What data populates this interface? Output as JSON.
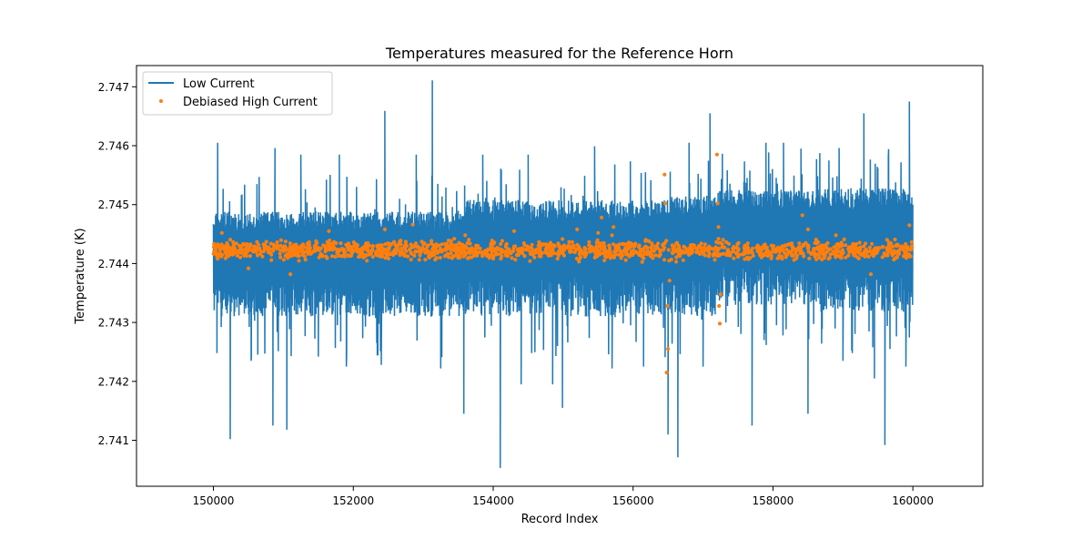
{
  "chart_data": {
    "type": "line",
    "title": "Temperatures measured for the Reference Horn",
    "xlabel": "Record Index",
    "ylabel": "Temperature (K)",
    "xlim": [
      148900,
      161000
    ],
    "ylim": [
      2.74022,
      2.74736
    ],
    "xticks": [
      150000,
      152000,
      154000,
      156000,
      158000,
      160000
    ],
    "xtick_labels": [
      "150000",
      "152000",
      "154000",
      "156000",
      "158000",
      "160000"
    ],
    "yticks": [
      2.741,
      2.742,
      2.743,
      2.744,
      2.745,
      2.746,
      2.747
    ],
    "ytick_labels": [
      "2.741",
      "2.742",
      "2.743",
      "2.744",
      "2.745",
      "2.746",
      "2.747"
    ],
    "legend_position": "upper-left",
    "series": [
      {
        "name": "Low Current",
        "kind": "line",
        "color": "#1f77b4",
        "x_range": [
          150000,
          160000
        ],
        "band_segments": [
          {
            "x": [
              150000,
              153600
            ],
            "low": 2.7431,
            "high": 2.74488
          },
          {
            "x": [
              153600,
              156500
            ],
            "low": 2.7431,
            "high": 2.74508
          },
          {
            "x": [
              156500,
              157200
            ],
            "low": 2.7431,
            "high": 2.74515
          },
          {
            "x": [
              157200,
              158600
            ],
            "low": 2.7433,
            "high": 2.74525
          },
          {
            "x": [
              158600,
              160000
            ],
            "low": 2.74318,
            "high": 2.74528
          }
        ],
        "spikes": [
          {
            "x": 150060,
            "y": 2.74605
          },
          {
            "x": 150050,
            "y": 2.74248
          },
          {
            "x": 150240,
            "y": 2.74102
          },
          {
            "x": 150540,
            "y": 2.74235
          },
          {
            "x": 150880,
            "y": 2.74596
          },
          {
            "x": 150850,
            "y": 2.74125
          },
          {
            "x": 151050,
            "y": 2.74118
          },
          {
            "x": 151250,
            "y": 2.74585
          },
          {
            "x": 151500,
            "y": 2.74242
          },
          {
            "x": 151800,
            "y": 2.74585
          },
          {
            "x": 151900,
            "y": 2.74225
          },
          {
            "x": 152450,
            "y": 2.74659
          },
          {
            "x": 152400,
            "y": 2.74228
          },
          {
            "x": 152900,
            "y": 2.74585
          },
          {
            "x": 153130,
            "y": 2.74711
          },
          {
            "x": 153250,
            "y": 2.74222
          },
          {
            "x": 153580,
            "y": 2.74145
          },
          {
            "x": 153850,
            "y": 2.74585
          },
          {
            "x": 154100,
            "y": 2.74053
          },
          {
            "x": 154400,
            "y": 2.74195
          },
          {
            "x": 154500,
            "y": 2.74585
          },
          {
            "x": 154850,
            "y": 2.74195
          },
          {
            "x": 154990,
            "y": 2.74155
          },
          {
            "x": 155450,
            "y": 2.74599
          },
          {
            "x": 155700,
            "y": 2.74222
          },
          {
            "x": 156150,
            "y": 2.74225
          },
          {
            "x": 156500,
            "y": 2.7411
          },
          {
            "x": 156640,
            "y": 2.74071
          },
          {
            "x": 156800,
            "y": 2.74605
          },
          {
            "x": 157000,
            "y": 2.74225
          },
          {
            "x": 157100,
            "y": 2.74655
          },
          {
            "x": 157350,
            "y": 2.74525
          },
          {
            "x": 157700,
            "y": 2.74125
          },
          {
            "x": 157900,
            "y": 2.74605
          },
          {
            "x": 158150,
            "y": 2.74605
          },
          {
            "x": 158400,
            "y": 2.74595
          },
          {
            "x": 158500,
            "y": 2.74145
          },
          {
            "x": 158800,
            "y": 2.74575
          },
          {
            "x": 159000,
            "y": 2.74235
          },
          {
            "x": 159300,
            "y": 2.74655
          },
          {
            "x": 159450,
            "y": 2.74205
          },
          {
            "x": 159600,
            "y": 2.74092
          },
          {
            "x": 159650,
            "y": 2.74581
          },
          {
            "x": 159950,
            "y": 2.74675
          },
          {
            "x": 159900,
            "y": 2.74225
          }
        ]
      },
      {
        "name": "Debiased High Current",
        "kind": "scatter",
        "color": "#ff7f0e",
        "x_range": [
          150000,
          160000
        ],
        "band": {
          "center": 2.74422,
          "low": 2.744,
          "high": 2.74445
        },
        "outliers": [
          {
            "x": 150120,
            "y": 2.74452
          },
          {
            "x": 150500,
            "y": 2.74392
          },
          {
            "x": 151100,
            "y": 2.74382
          },
          {
            "x": 151650,
            "y": 2.74455
          },
          {
            "x": 152450,
            "y": 2.74458
          },
          {
            "x": 152850,
            "y": 2.74466
          },
          {
            "x": 153600,
            "y": 2.74448
          },
          {
            "x": 154300,
            "y": 2.74455
          },
          {
            "x": 155200,
            "y": 2.74458
          },
          {
            "x": 155500,
            "y": 2.74452
          },
          {
            "x": 155550,
            "y": 2.74478
          },
          {
            "x": 155700,
            "y": 2.74448
          },
          {
            "x": 155720,
            "y": 2.74462
          },
          {
            "x": 156450,
            "y": 2.74551
          },
          {
            "x": 156500,
            "y": 2.74255
          },
          {
            "x": 156480,
            "y": 2.74215
          },
          {
            "x": 156490,
            "y": 2.74328
          },
          {
            "x": 156460,
            "y": 2.74502
          },
          {
            "x": 156520,
            "y": 2.74371
          },
          {
            "x": 157200,
            "y": 2.74585
          },
          {
            "x": 157210,
            "y": 2.74502
          },
          {
            "x": 157220,
            "y": 2.74462
          },
          {
            "x": 157230,
            "y": 2.74328
          },
          {
            "x": 157240,
            "y": 2.74298
          },
          {
            "x": 157250,
            "y": 2.74348
          },
          {
            "x": 158420,
            "y": 2.74482
          },
          {
            "x": 158500,
            "y": 2.74458
          },
          {
            "x": 158900,
            "y": 2.74448
          },
          {
            "x": 159400,
            "y": 2.74382
          },
          {
            "x": 159950,
            "y": 2.74465
          }
        ]
      }
    ]
  }
}
